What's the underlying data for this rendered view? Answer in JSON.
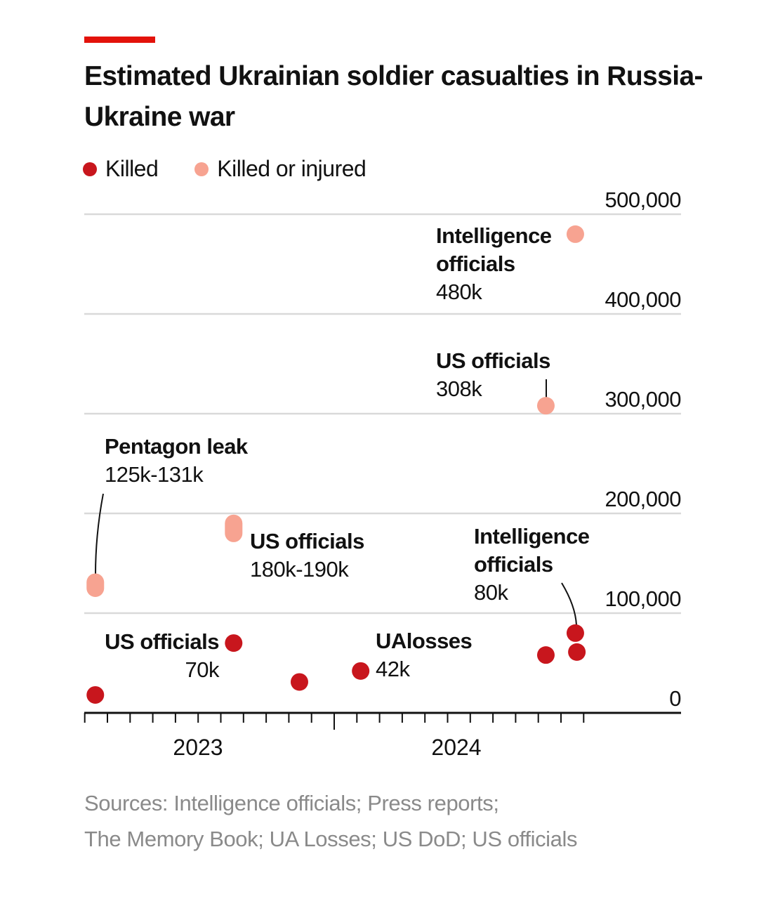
{
  "title": "Estimated Ukrainian soldier casualties in Russia-Ukraine war",
  "accent_color": "#e3120b",
  "source": [
    "Sources: Intelligence officials; Press reports;",
    "The Memory Book; UA Losses; US DoD; US officials"
  ],
  "chart_data": {
    "type": "scatter",
    "title": "Estimated Ukrainian soldier casualties in Russia-Ukraine war",
    "xlabel": "",
    "ylabel": "",
    "ylim": [
      0,
      500000
    ],
    "y_ticks": [
      "500,000",
      "400,000",
      "300,000",
      "200,000",
      "100,000",
      "0"
    ],
    "y_tick_values": [
      500000,
      400000,
      300000,
      200000,
      100000,
      0
    ],
    "x_ticks": [
      "2023",
      "2024"
    ],
    "grid": true,
    "legend_position": "top-left",
    "series": [
      {
        "name": "Killed",
        "color": "#c8161d",
        "points": [
          {
            "date": "2023-02-15",
            "value": 18000
          },
          {
            "date": "2023-08-18",
            "value": 70000,
            "label": "US officials",
            "value_label": "70k"
          },
          {
            "date": "2023-11-15",
            "value": 31000
          },
          {
            "date": "2024-02-06",
            "value": 42000,
            "label": "UAlosses",
            "value_label": "42k"
          },
          {
            "date": "2024-10-11",
            "value": 58000
          },
          {
            "date": "2024-11-20",
            "value": 80000,
            "label": "Intelligence officials",
            "value_label": "80k"
          },
          {
            "date": "2024-11-22",
            "value": 61000
          }
        ]
      },
      {
        "name": "Killed or injured",
        "color": "#f7a391",
        "points": [
          {
            "date": "2023-02-15",
            "value": 125000,
            "high": 131000,
            "label": "Pentagon leak",
            "value_label": "125k-131k"
          },
          {
            "date": "2023-08-18",
            "value": 180000,
            "high": 190000,
            "label": "US officials",
            "value_label": "180k-190k"
          },
          {
            "date": "2024-10-11",
            "value": 308000,
            "label": "US officials",
            "value_label": "308k"
          },
          {
            "date": "2024-11-20",
            "value": 480000,
            "label": "Intelligence officials",
            "value_label": "480k"
          }
        ]
      }
    ]
  }
}
